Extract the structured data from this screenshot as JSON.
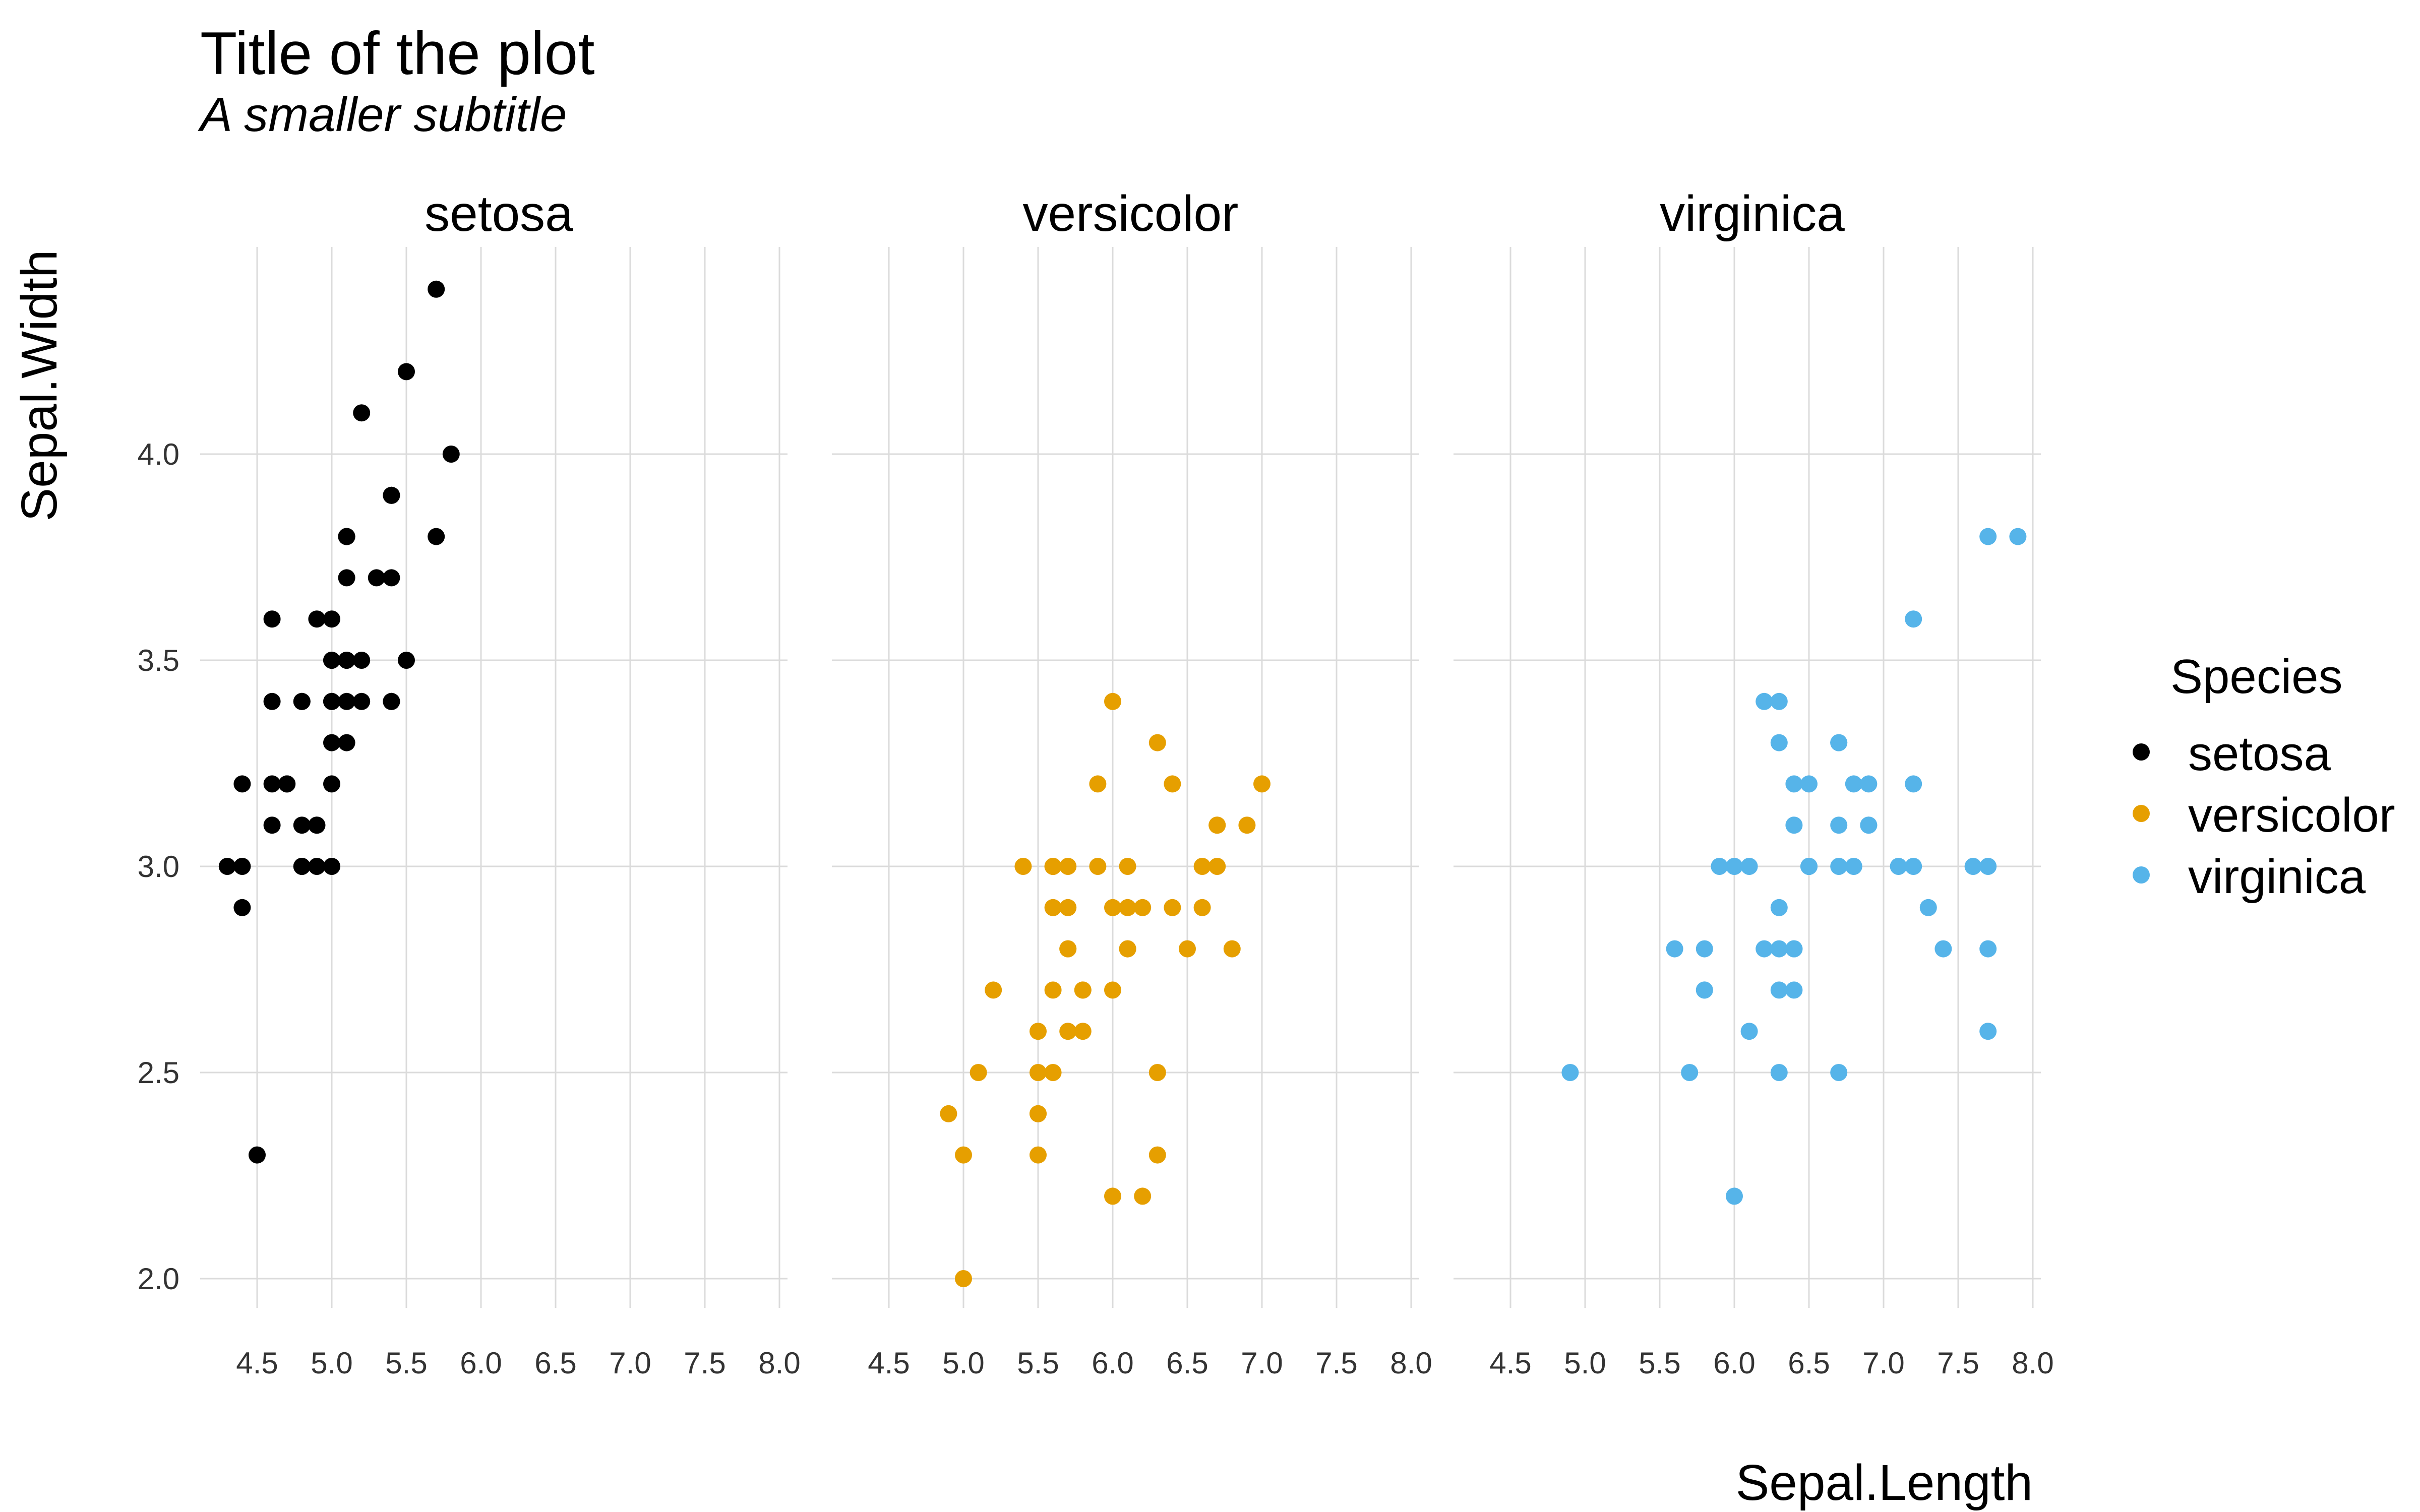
{
  "chart_data": {
    "type": "scatter",
    "title": "Title of the plot",
    "subtitle": "A smaller subtitle",
    "xlabel": "Sepal.Length",
    "ylabel": "Sepal.Width",
    "xlim": [
      4.3,
      8.0
    ],
    "ylim": [
      1.9,
      4.5
    ],
    "x_ticks": [
      "4.5",
      "5.0",
      "5.5",
      "6.0",
      "6.5",
      "7.0",
      "7.5",
      "8.0"
    ],
    "y_ticks": [
      "2.0",
      "2.5",
      "3.0",
      "3.5",
      "4.0"
    ],
    "grid": true,
    "facets": [
      "setosa",
      "versicolor",
      "virginica"
    ],
    "legend": {
      "title": "Species",
      "placement": "right",
      "entries": [
        "setosa",
        "versicolor",
        "virginica"
      ]
    },
    "series": [
      {
        "name": "setosa",
        "color": "#000000",
        "points": [
          [
            5.1,
            3.5
          ],
          [
            4.9,
            3.0
          ],
          [
            4.7,
            3.2
          ],
          [
            4.6,
            3.1
          ],
          [
            5.0,
            3.6
          ],
          [
            5.4,
            3.9
          ],
          [
            4.6,
            3.4
          ],
          [
            5.0,
            3.4
          ],
          [
            4.4,
            2.9
          ],
          [
            4.9,
            3.1
          ],
          [
            5.4,
            3.7
          ],
          [
            4.8,
            3.4
          ],
          [
            4.8,
            3.0
          ],
          [
            4.3,
            3.0
          ],
          [
            5.8,
            4.0
          ],
          [
            5.7,
            4.4
          ],
          [
            5.4,
            3.9
          ],
          [
            5.1,
            3.5
          ],
          [
            5.7,
            3.8
          ],
          [
            5.1,
            3.8
          ],
          [
            5.4,
            3.4
          ],
          [
            5.1,
            3.7
          ],
          [
            4.6,
            3.6
          ],
          [
            5.1,
            3.3
          ],
          [
            4.8,
            3.4
          ],
          [
            5.0,
            3.0
          ],
          [
            5.0,
            3.4
          ],
          [
            5.2,
            3.5
          ],
          [
            5.2,
            3.4
          ],
          [
            4.7,
            3.2
          ],
          [
            4.8,
            3.1
          ],
          [
            5.4,
            3.4
          ],
          [
            5.2,
            4.1
          ],
          [
            5.5,
            4.2
          ],
          [
            4.9,
            3.1
          ],
          [
            5.0,
            3.2
          ],
          [
            5.5,
            3.5
          ],
          [
            4.9,
            3.6
          ],
          [
            4.4,
            3.0
          ],
          [
            5.1,
            3.4
          ],
          [
            5.0,
            3.5
          ],
          [
            4.5,
            2.3
          ],
          [
            4.4,
            3.2
          ],
          [
            5.0,
            3.5
          ],
          [
            5.1,
            3.8
          ],
          [
            4.8,
            3.0
          ],
          [
            5.1,
            3.8
          ],
          [
            4.6,
            3.2
          ],
          [
            5.3,
            3.7
          ],
          [
            5.0,
            3.3
          ]
        ]
      },
      {
        "name": "versicolor",
        "color": "#E69F00",
        "points": [
          [
            7.0,
            3.2
          ],
          [
            6.4,
            3.2
          ],
          [
            6.9,
            3.1
          ],
          [
            5.5,
            2.3
          ],
          [
            6.5,
            2.8
          ],
          [
            5.7,
            2.8
          ],
          [
            6.3,
            3.3
          ],
          [
            4.9,
            2.4
          ],
          [
            6.6,
            2.9
          ],
          [
            5.2,
            2.7
          ],
          [
            5.0,
            2.0
          ],
          [
            5.9,
            3.0
          ],
          [
            6.0,
            2.2
          ],
          [
            6.1,
            2.9
          ],
          [
            5.6,
            2.9
          ],
          [
            6.7,
            3.1
          ],
          [
            5.6,
            3.0
          ],
          [
            5.8,
            2.7
          ],
          [
            6.2,
            2.2
          ],
          [
            5.6,
            2.5
          ],
          [
            5.9,
            3.2
          ],
          [
            6.1,
            2.8
          ],
          [
            6.3,
            2.5
          ],
          [
            6.1,
            2.8
          ],
          [
            6.4,
            2.9
          ],
          [
            6.6,
            3.0
          ],
          [
            6.8,
            2.8
          ],
          [
            6.7,
            3.0
          ],
          [
            6.0,
            2.9
          ],
          [
            5.7,
            2.6
          ],
          [
            5.5,
            2.4
          ],
          [
            5.5,
            2.4
          ],
          [
            5.8,
            2.7
          ],
          [
            6.0,
            2.7
          ],
          [
            5.4,
            3.0
          ],
          [
            6.0,
            3.4
          ],
          [
            6.7,
            3.1
          ],
          [
            6.3,
            2.3
          ],
          [
            5.6,
            3.0
          ],
          [
            5.5,
            2.5
          ],
          [
            5.5,
            2.6
          ],
          [
            6.1,
            3.0
          ],
          [
            5.8,
            2.6
          ],
          [
            5.0,
            2.3
          ],
          [
            5.6,
            2.7
          ],
          [
            5.7,
            3.0
          ],
          [
            5.7,
            2.9
          ],
          [
            6.2,
            2.9
          ],
          [
            5.1,
            2.5
          ],
          [
            5.7,
            2.8
          ]
        ]
      },
      {
        "name": "virginica",
        "color": "#56B4E9",
        "points": [
          [
            6.3,
            3.3
          ],
          [
            5.8,
            2.7
          ],
          [
            7.1,
            3.0
          ],
          [
            6.3,
            2.9
          ],
          [
            6.5,
            3.0
          ],
          [
            7.6,
            3.0
          ],
          [
            4.9,
            2.5
          ],
          [
            7.3,
            2.9
          ],
          [
            6.7,
            2.5
          ],
          [
            7.2,
            3.6
          ],
          [
            6.5,
            3.2
          ],
          [
            6.4,
            2.7
          ],
          [
            6.8,
            3.0
          ],
          [
            5.7,
            2.5
          ],
          [
            5.8,
            2.8
          ],
          [
            6.4,
            3.2
          ],
          [
            6.5,
            3.0
          ],
          [
            7.7,
            3.8
          ],
          [
            7.7,
            2.6
          ],
          [
            6.0,
            2.2
          ],
          [
            6.9,
            3.2
          ],
          [
            5.6,
            2.8
          ],
          [
            7.7,
            2.8
          ],
          [
            6.3,
            2.7
          ],
          [
            6.7,
            3.3
          ],
          [
            7.2,
            3.2
          ],
          [
            6.2,
            2.8
          ],
          [
            6.1,
            3.0
          ],
          [
            6.4,
            2.8
          ],
          [
            7.2,
            3.0
          ],
          [
            7.4,
            2.8
          ],
          [
            7.9,
            3.8
          ],
          [
            6.4,
            2.8
          ],
          [
            6.3,
            2.8
          ],
          [
            6.1,
            2.6
          ],
          [
            7.7,
            3.0
          ],
          [
            6.3,
            3.4
          ],
          [
            6.4,
            3.1
          ],
          [
            6.0,
            3.0
          ],
          [
            6.9,
            3.1
          ],
          [
            6.7,
            3.1
          ],
          [
            6.9,
            3.1
          ],
          [
            5.8,
            2.7
          ],
          [
            6.8,
            3.2
          ],
          [
            6.7,
            3.3
          ],
          [
            6.7,
            3.0
          ],
          [
            6.3,
            2.5
          ],
          [
            6.5,
            3.0
          ],
          [
            6.2,
            3.4
          ],
          [
            5.9,
            3.0
          ]
        ]
      }
    ]
  }
}
